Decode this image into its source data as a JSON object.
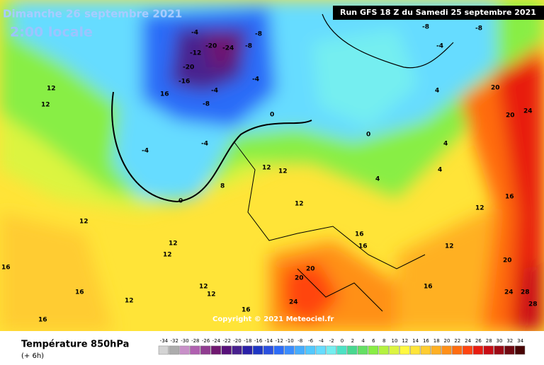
{
  "header": {
    "date": "Dimanche 26 septembre 2021",
    "time": "2:00 locale",
    "run": "Run GFS 18 Z du Samedi 25 septembre 2021"
  },
  "copyright": "Copyright © 2021 Meteociel.fr",
  "legend": {
    "title": "Température 850hPa",
    "subtitle": "(+ 6h)"
  },
  "colorbar": {
    "values": [
      -34,
      -32,
      -30,
      -28,
      -26,
      -24,
      -22,
      -20,
      -18,
      -16,
      -14,
      -12,
      -10,
      -8,
      -6,
      -4,
      -2,
      0,
      2,
      4,
      6,
      8,
      10,
      12,
      14,
      16,
      18,
      20,
      22,
      24,
      26,
      28,
      30,
      32,
      34
    ],
    "colors": [
      "#d4d4d4",
      "#acacac",
      "#c890c8",
      "#b060b0",
      "#903c90",
      "#701870",
      "#58107a",
      "#48208e",
      "#2a20a8",
      "#1e36c4",
      "#2a50e0",
      "#2c6cf8",
      "#3a8cff",
      "#46acff",
      "#52c8ff",
      "#66dcff",
      "#74eef0",
      "#4ce2c4",
      "#48d890",
      "#64e064",
      "#88ee44",
      "#b4f240",
      "#dcf440",
      "#fff840",
      "#ffe438",
      "#ffcc30",
      "#ffb024",
      "#ff9018",
      "#ff6c10",
      "#ff4410",
      "#e81c10",
      "#c80c14",
      "#9c0814",
      "#700810",
      "#480404"
    ]
  },
  "contour_labels": [
    12,
    12,
    16,
    -20,
    -24,
    -12,
    -8,
    -4,
    -8,
    -20,
    -4,
    -8,
    -4,
    -4,
    -4,
    0,
    0,
    8,
    12,
    12,
    12,
    12,
    12,
    12,
    16,
    16,
    12,
    12,
    12,
    16,
    16,
    20,
    24,
    20,
    16,
    16,
    16,
    12,
    12,
    16,
    20,
    20,
    24,
    24,
    28,
    28,
    20,
    4,
    4,
    4,
    4,
    -8,
    -8,
    -4,
    0,
    -16
  ]
}
